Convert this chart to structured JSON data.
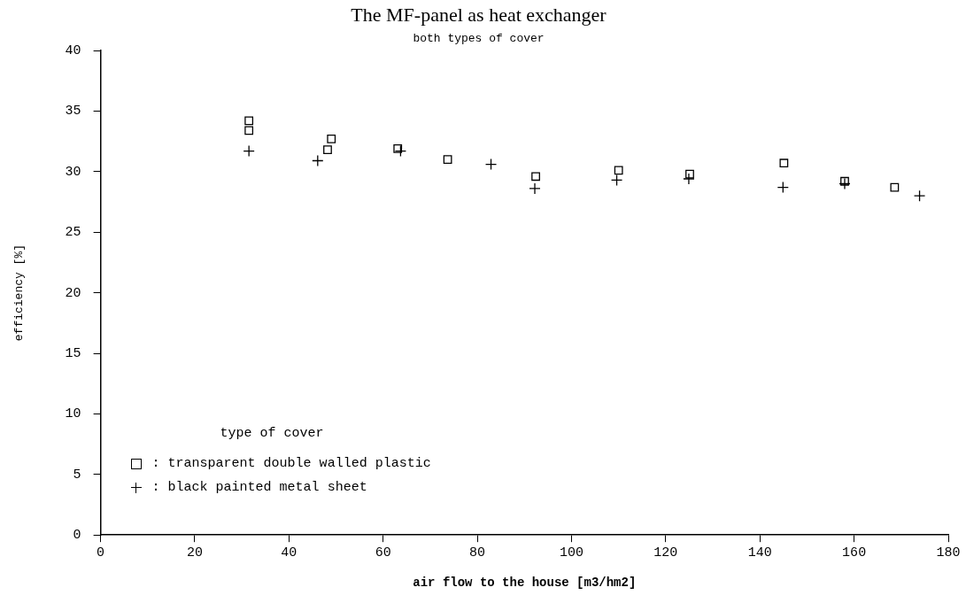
{
  "chart_data": {
    "type": "scatter",
    "title": "The MF-panel as heat exchanger",
    "subtitle": "both types of cover",
    "xlabel": "air flow to the house [m3/hm2]",
    "ylabel": "efficiency [%]",
    "legend_title": "type of cover",
    "legend": "bottom left",
    "grid": false,
    "xlim": [
      0,
      180
    ],
    "xticks": [
      0,
      20,
      40,
      60,
      80,
      100,
      120,
      140,
      160,
      180
    ],
    "ylim": [
      0,
      40
    ],
    "yticks": [
      0,
      5,
      10,
      15,
      20,
      25,
      30,
      35,
      40
    ],
    "series": [
      {
        "name": ": transparent double walled plastic",
        "color": "#000000",
        "marker": "square",
        "x": [
          31.5,
          31.5,
          48.2,
          49.0,
          63.1,
          73.7,
          92.4,
          110.0,
          125.1,
          145.1,
          158.0,
          168.6
        ],
        "values": [
          34.2,
          33.4,
          31.8,
          32.7,
          31.9,
          31.0,
          29.6,
          30.1,
          29.8,
          30.7,
          29.2,
          28.7
        ]
      },
      {
        "name": ": black painted metal sheet",
        "color": "#000000",
        "marker": "cross",
        "x": [
          31.5,
          46.1,
          63.7,
          82.9,
          92.2,
          109.6,
          124.9,
          144.9,
          158.0,
          173.9
        ],
        "values": [
          31.7,
          30.9,
          31.7,
          30.6,
          28.6,
          29.3,
          29.4,
          28.7,
          29.0,
          28.0
        ]
      }
    ]
  }
}
